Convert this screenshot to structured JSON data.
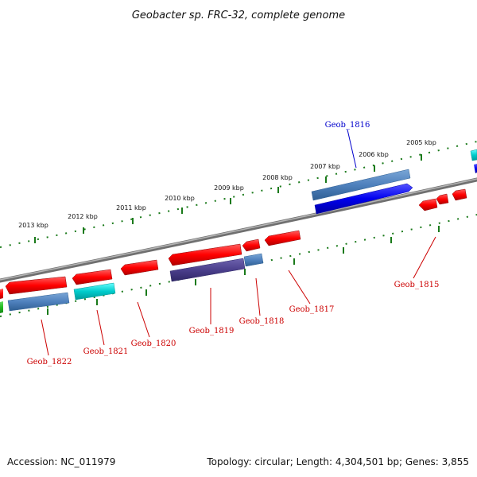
{
  "title": "Geobacter sp. FRC-32, complete genome",
  "footer": {
    "accession": "Accession: NC_011979",
    "summary": "Topology: circular; Length: 4,304,501 bp; Genes: 3,855"
  },
  "kbp_labels": [
    "2005 kbp",
    "2006 kbp",
    "2007 kbp",
    "2008 kbp",
    "2009 kbp",
    "2010 kbp",
    "2011 kbp",
    "2012 kbp",
    "2013 kbp"
  ],
  "gene_labels": [
    {
      "name": "Geob_1816",
      "color": "#0000cc"
    },
    {
      "name": "Geob_1815",
      "color": "#cc0000"
    },
    {
      "name": "Geob_1817",
      "color": "#cc0000"
    },
    {
      "name": "Geob_1818",
      "color": "#cc0000"
    },
    {
      "name": "Geob_1819",
      "color": "#cc0000"
    },
    {
      "name": "Geob_1820",
      "color": "#cc0000"
    },
    {
      "name": "Geob_1821",
      "color": "#cc0000"
    },
    {
      "name": "Geob_1822",
      "color": "#cc0000"
    }
  ],
  "colors": {
    "red_gene": "#ff0000",
    "blue_gene": "#0000ee",
    "steel_gene": "#4f81bd",
    "cyan_gene": "#00cccc",
    "purple_gene": "#4b3f8c",
    "green_gene": "#22bb22",
    "backbone": "#808080",
    "ticks": "#1a7a1a"
  }
}
